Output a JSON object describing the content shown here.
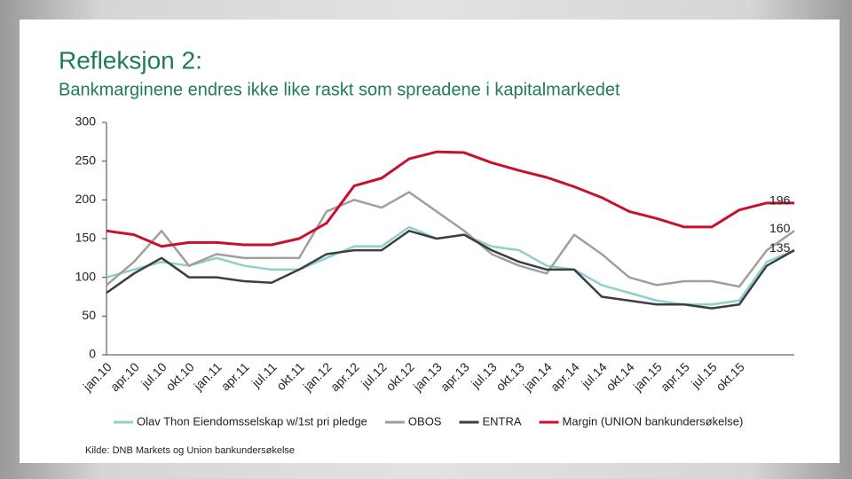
{
  "chart_data": {
    "type": "line",
    "title": "Refleksjon 2:",
    "subtitle": "Bankmarginene endres ikke like raskt som spreadene i kapitalmarkedet",
    "source": "Kilde: DNB Markets og Union bankundersøkelse",
    "categories": [
      "jan.10",
      "apr.10",
      "jul.10",
      "okt.10",
      "jan.11",
      "apr.11",
      "jul.11",
      "okt.11",
      "jan.12",
      "apr.12",
      "jul.12",
      "okt.12",
      "jan.13",
      "apr.13",
      "jul.13",
      "okt.13",
      "jan.14",
      "apr.14",
      "jul.14",
      "okt.14",
      "jan.15",
      "apr.15",
      "jul.15",
      "okt.15",
      null,
      null
    ],
    "ylim": [
      0,
      300
    ],
    "yticks": [
      0,
      50,
      100,
      150,
      200,
      250,
      300
    ],
    "grid": false,
    "series": [
      {
        "name": "Olav Thon Eiendomsselskap w/1st pri pledge",
        "color": "#8fd0ca",
        "show_end_label": false,
        "values": [
          100,
          110,
          120,
          115,
          125,
          115,
          110,
          110,
          125,
          140,
          140,
          165,
          150,
          155,
          140,
          135,
          115,
          110,
          90,
          80,
          70,
          65,
          65,
          70,
          120,
          135
        ]
      },
      {
        "name": "OBOS",
        "color": "#a39e99",
        "show_end_label": true,
        "values": [
          90,
          120,
          160,
          115,
          130,
          125,
          125,
          125,
          185,
          200,
          190,
          210,
          185,
          160,
          130,
          115,
          105,
          155,
          130,
          100,
          90,
          95,
          95,
          88,
          135,
          160
        ]
      },
      {
        "name": "ENTRA",
        "color": "#3b3e42",
        "show_end_label": true,
        "values": [
          80,
          105,
          125,
          100,
          100,
          95,
          93,
          110,
          130,
          135,
          135,
          160,
          150,
          155,
          135,
          120,
          110,
          110,
          75,
          70,
          65,
          65,
          60,
          65,
          115,
          135
        ]
      },
      {
        "name": "Margin (UNION bankundersøkelse)",
        "color": "#c8102e",
        "show_end_label": true,
        "values": [
          160,
          155,
          140,
          145,
          145,
          142,
          142,
          150,
          170,
          218,
          228,
          253,
          262,
          261,
          248,
          238,
          229,
          217,
          203,
          185,
          176,
          165,
          165,
          187,
          196,
          196
        ]
      }
    ]
  }
}
